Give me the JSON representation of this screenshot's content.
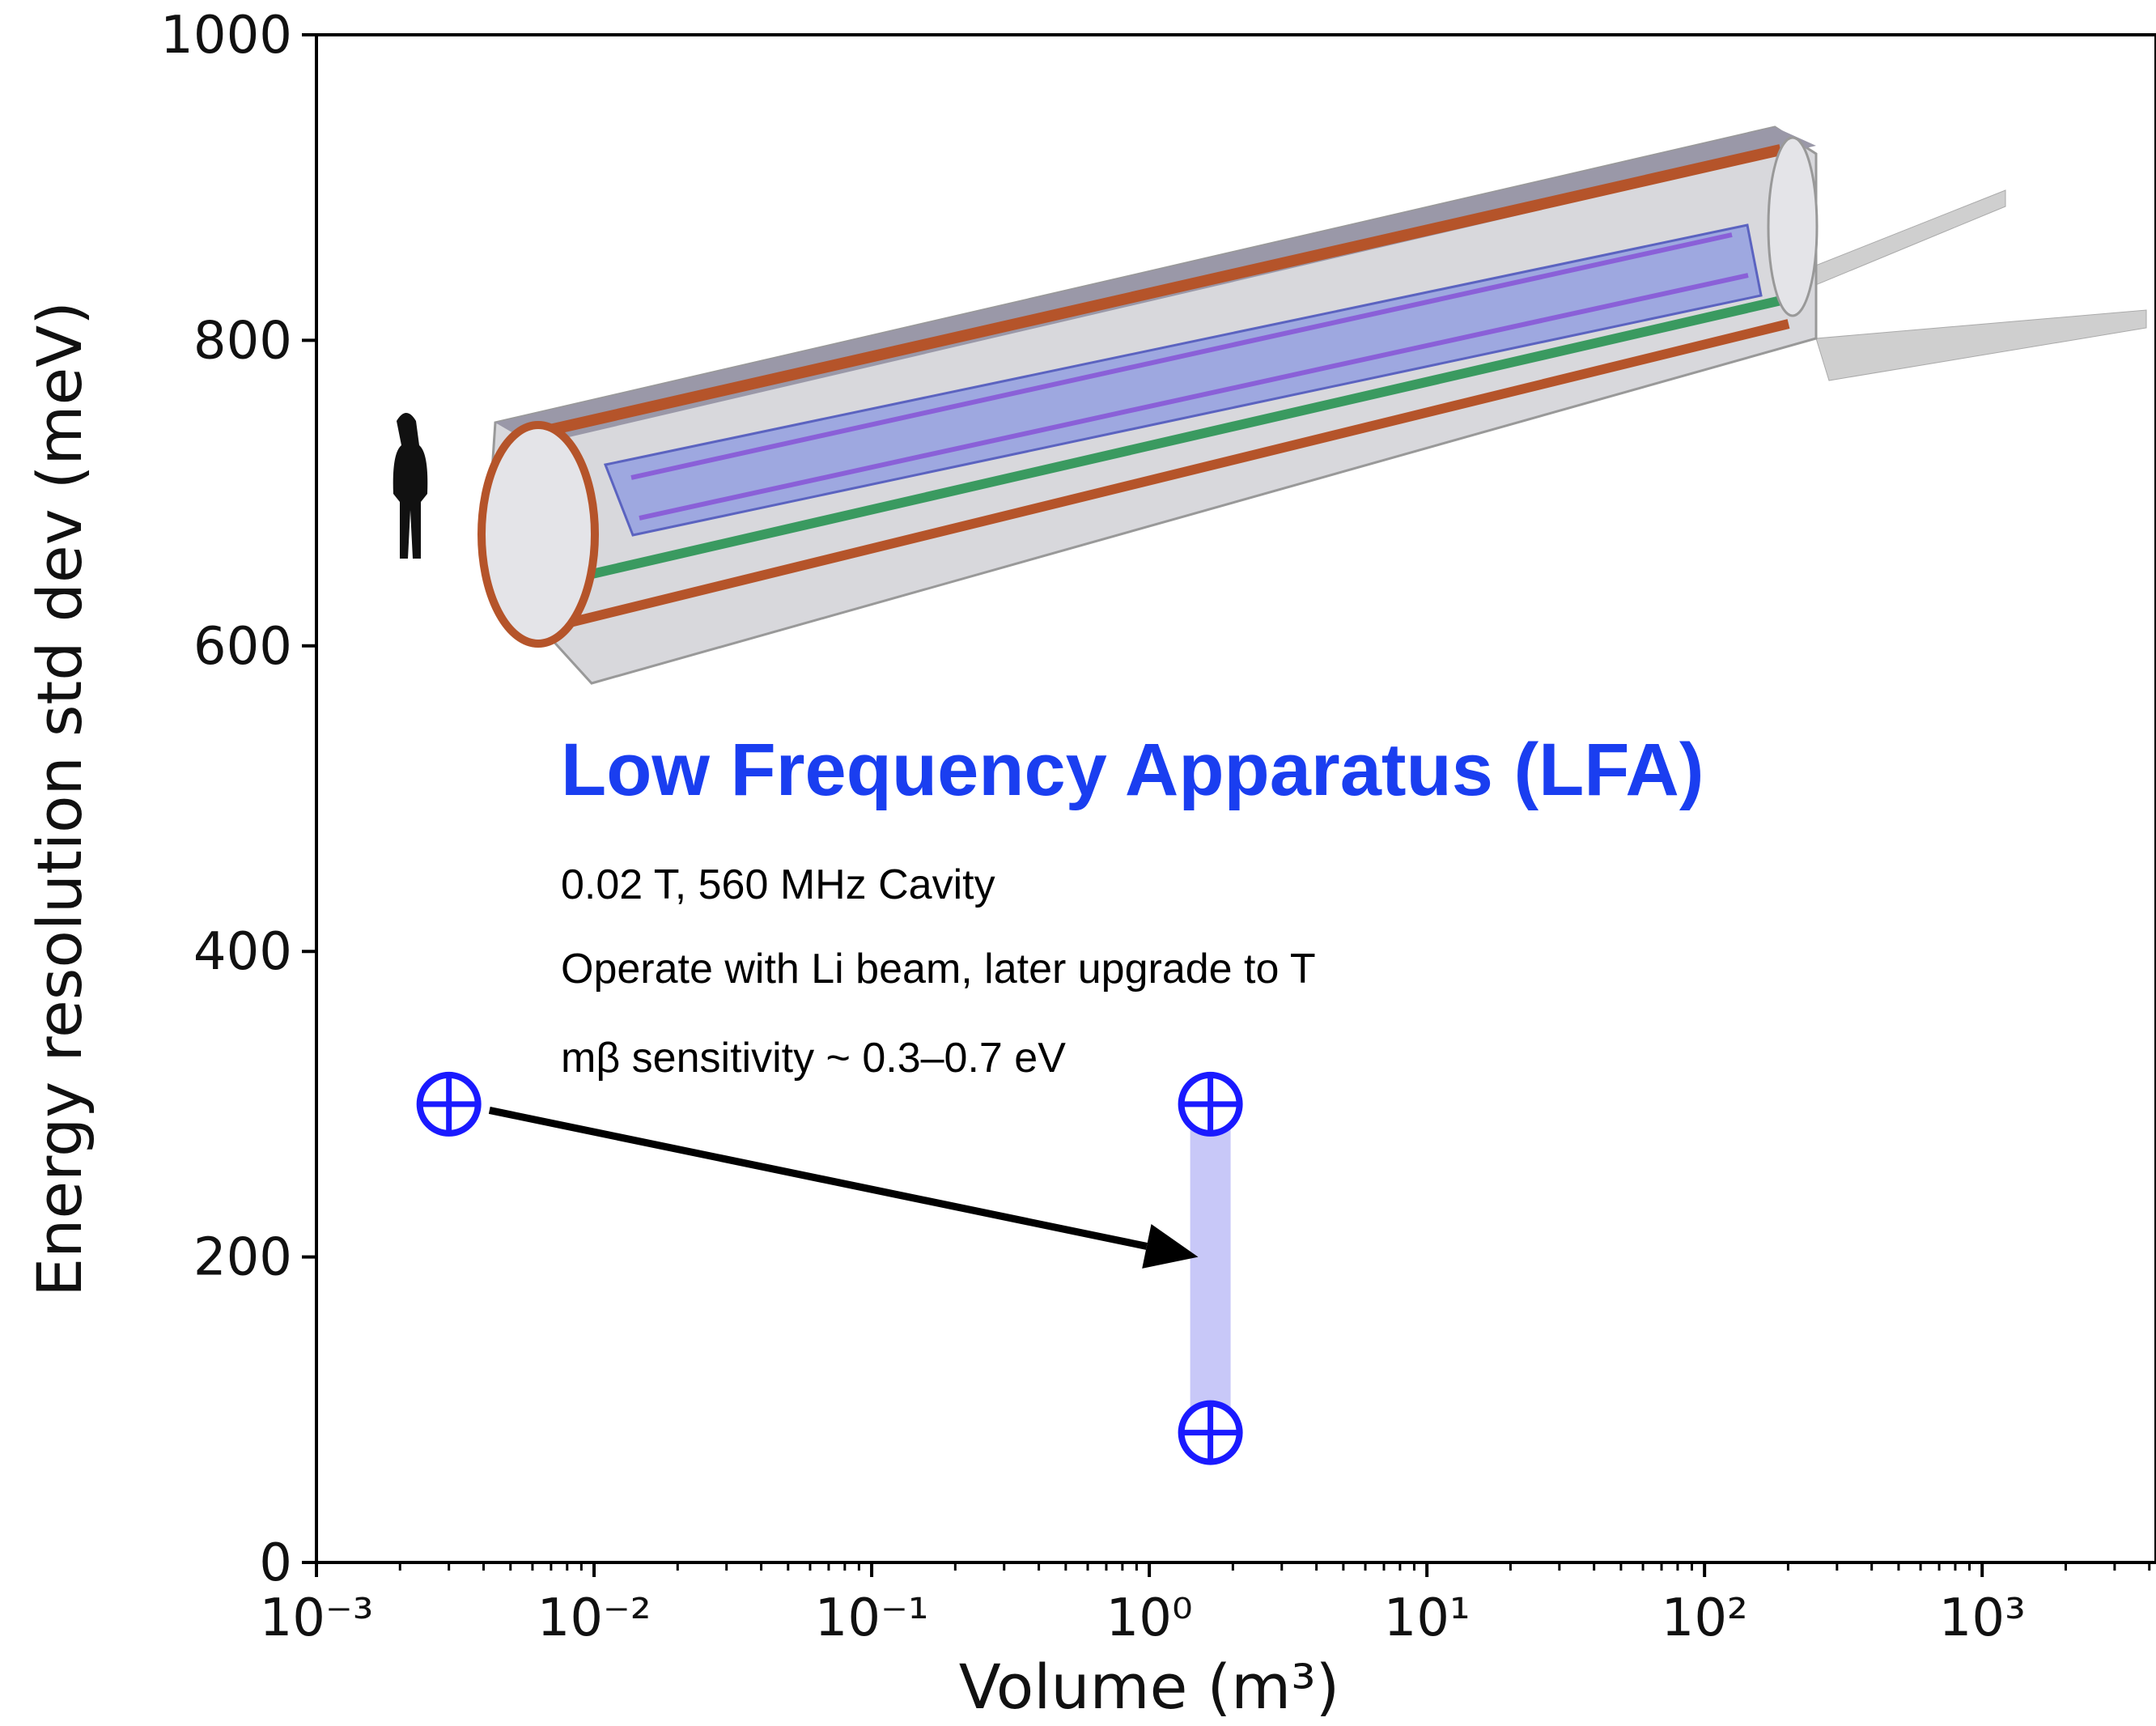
{
  "chart_data": {
    "type": "scatter",
    "xlabel": "Volume (m³)",
    "ylabel": "Energy resolution std dev (meV)",
    "xscale": "log",
    "xlim": [
      0.001,
      4200
    ],
    "ylim": [
      0,
      1000
    ],
    "xticks": [
      {
        "value": 0.001,
        "label": "10⁻³"
      },
      {
        "value": 0.01,
        "label": "10⁻²"
      },
      {
        "value": 0.1,
        "label": "10⁻¹"
      },
      {
        "value": 1,
        "label": "10⁰"
      },
      {
        "value": 10,
        "label": "10¹"
      },
      {
        "value": 100,
        "label": "10²"
      },
      {
        "value": 1000,
        "label": "10³"
      }
    ],
    "xminorticks": [
      0.002,
      0.003,
      0.004,
      0.005,
      0.006,
      0.007,
      0.008,
      0.009,
      0.02,
      0.03,
      0.04,
      0.05,
      0.06,
      0.07,
      0.08,
      0.09,
      0.2,
      0.3,
      0.4,
      0.5,
      0.6,
      0.7,
      0.8,
      0.9,
      2,
      3,
      4,
      5,
      6,
      7,
      8,
      9,
      20,
      30,
      40,
      50,
      60,
      70,
      80,
      90,
      200,
      300,
      400,
      500,
      600,
      700,
      800,
      900,
      2000,
      3000,
      4000
    ],
    "yticks": [
      0,
      200,
      400,
      600,
      800,
      1000
    ],
    "color": "#1a1aff",
    "x": [
      0.003,
      1.66,
      1.66
    ],
    "values": [
      300,
      300,
      85
    ],
    "band": {
      "x": 1.66,
      "low": 85,
      "high": 300,
      "color": "#c8c8f8"
    },
    "arrow": {
      "x": [
        0.0042,
        1.5
      ],
      "y": [
        296,
        200
      ]
    },
    "annotation": {
      "title": "Low Frequency Apparatus (LFA)",
      "lines": [
        "0.02 T, 560 MHz Cavity",
        "Operate with Li beam, later upgrade to T",
        "mβ sensitivity ~ 0.3–0.7 eV"
      ]
    }
  }
}
